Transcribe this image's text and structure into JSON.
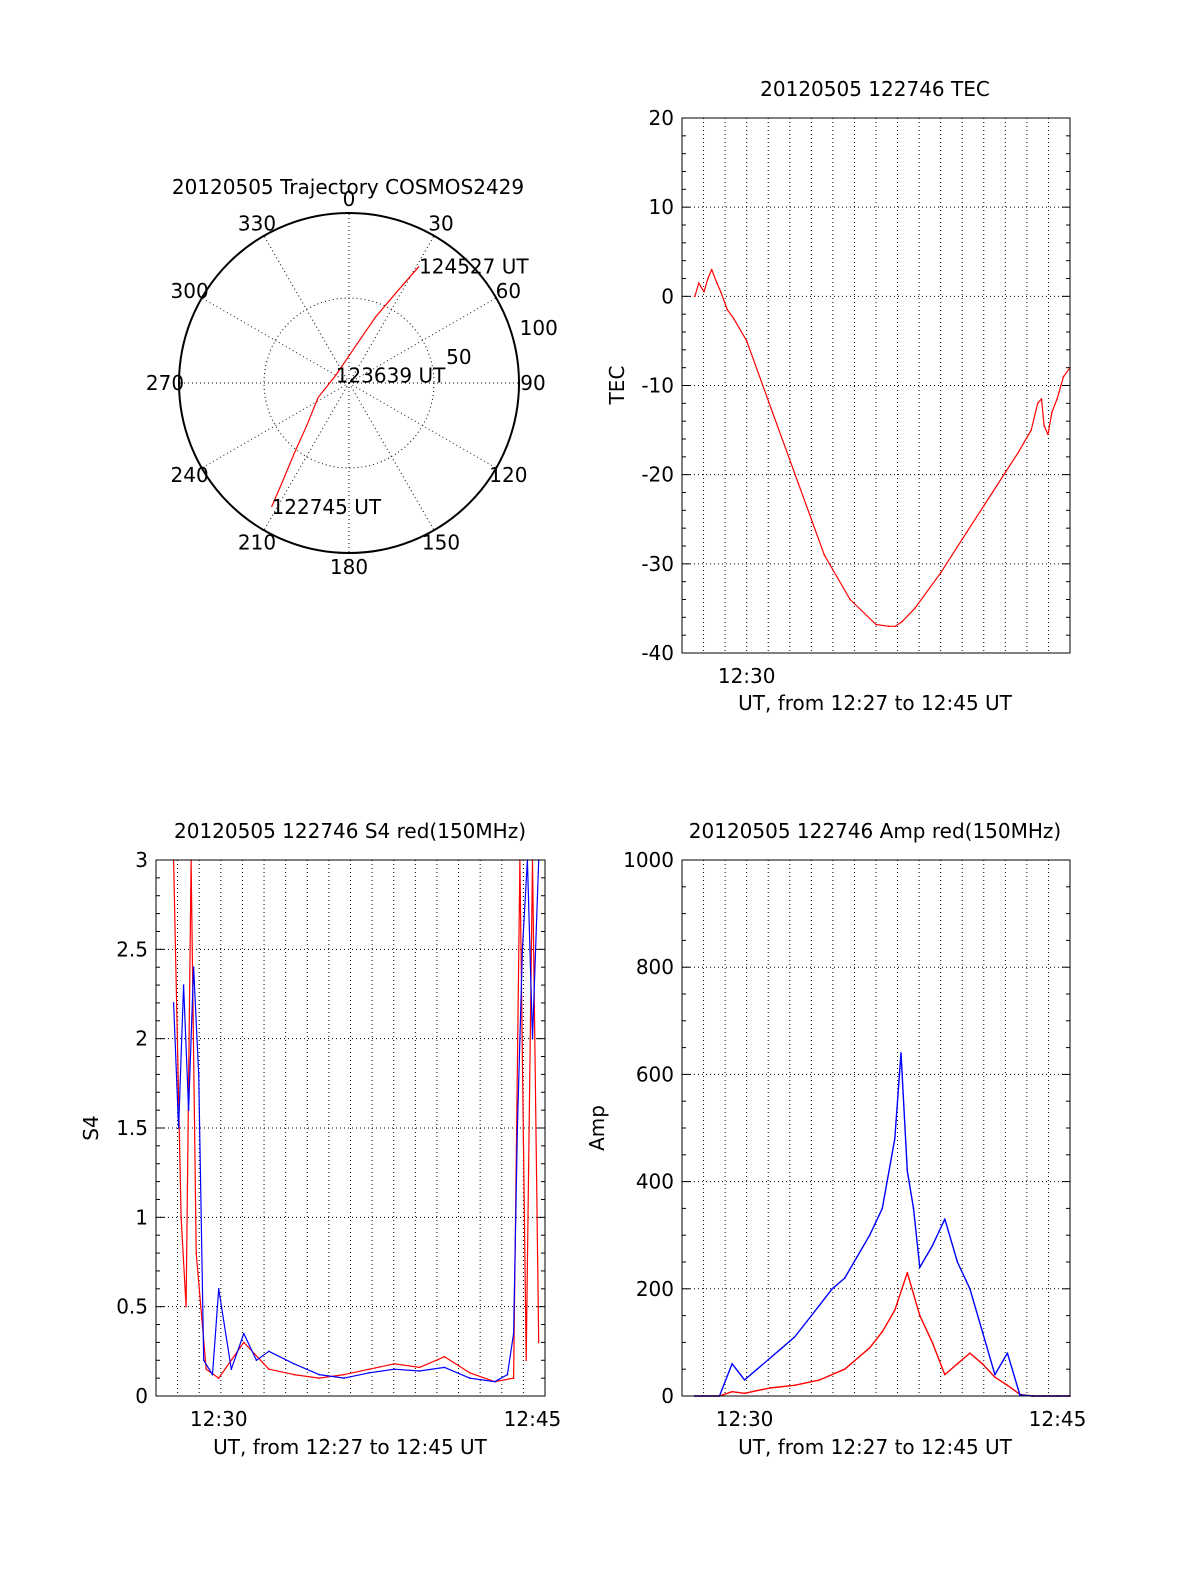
{
  "colors": {
    "red": "#ff0000",
    "blue": "#0000ff",
    "axis": "#000000"
  },
  "chart_data": [
    {
      "type": "polar",
      "id": "trajectory",
      "title": "20120505 Trajectory COSMOS2429",
      "azimuth_labels": [
        "0",
        "30",
        "60",
        "90",
        "120",
        "150",
        "180",
        "210",
        "240",
        "270",
        "300",
        "330"
      ],
      "azimuth_degrees": [
        0,
        30,
        60,
        90,
        120,
        150,
        180,
        210,
        240,
        270,
        300,
        330
      ],
      "radial_ring_labels": [
        {
          "value": 50,
          "label": "50"
        },
        {
          "value": 100,
          "label": "100"
        }
      ],
      "trajectory": {
        "color": "red",
        "points": [
          {
            "az": 212,
            "r": 86
          },
          {
            "az": 214,
            "r": 70
          },
          {
            "az": 218,
            "r": 52
          },
          {
            "az": 225,
            "r": 35
          },
          {
            "az": 245,
            "r": 20
          },
          {
            "az": 300,
            "r": 9
          },
          {
            "az": 10,
            "r": 22
          },
          {
            "az": 22,
            "r": 42
          },
          {
            "az": 28,
            "r": 62
          },
          {
            "az": 31,
            "r": 80
          }
        ]
      },
      "time_labels": [
        {
          "text": "124527 UT",
          "az": 31,
          "r": 80
        },
        {
          "text": "123639 UT",
          "az": 300,
          "r": 9
        },
        {
          "text": "122745 UT",
          "az": 212,
          "r": 86
        }
      ]
    },
    {
      "type": "line",
      "id": "tec",
      "title": "20120505 122746 TEC",
      "xlabel": "UT, from 12:27 to 12:45 UT",
      "ylabel": "TEC",
      "xlim": [
        12.45,
        12.75
      ],
      "ylim": [
        -40,
        20
      ],
      "yticks": [
        -40,
        -30,
        -20,
        -10,
        0,
        10,
        20
      ],
      "xticks": [
        {
          "value": 12.5,
          "label": "12:30"
        }
      ],
      "series": [
        {
          "color": "red",
          "x": [
            12.46,
            12.463,
            12.467,
            12.47,
            12.473,
            12.477,
            12.48,
            12.485,
            12.49,
            12.5,
            12.52,
            12.54,
            12.56,
            12.58,
            12.6,
            12.61,
            12.615,
            12.62,
            12.63,
            12.65,
            12.67,
            12.69,
            12.71,
            12.72,
            12.725,
            12.728,
            12.73,
            12.733,
            12.736,
            12.74,
            12.745,
            12.75
          ],
          "y": [
            0,
            1.5,
            0.5,
            2,
            3,
            1.5,
            0.5,
            -1.5,
            -2.5,
            -5,
            -13,
            -21,
            -29,
            -34,
            -36.8,
            -37,
            -37,
            -36.5,
            -35,
            -31,
            -26.5,
            -22,
            -17.5,
            -15,
            -12,
            -11.5,
            -14.5,
            -15.5,
            -13,
            -11.5,
            -9,
            -8
          ]
        }
      ]
    },
    {
      "type": "line",
      "id": "s4",
      "title": "20120505 122746 S4 red(150MHz)",
      "xlabel": "UT, from 12:27 to 12:45 UT",
      "ylabel": "S4",
      "xlim": [
        12.45,
        12.76
      ],
      "ylim": [
        0,
        3
      ],
      "yticks": [
        0,
        0.5,
        1,
        1.5,
        2,
        2.5,
        3
      ],
      "ytick_labels": [
        "0",
        "0.5",
        "1",
        "1.5",
        "2",
        "2.5",
        "3"
      ],
      "xticks": [
        {
          "value": 12.5,
          "label": "12:30"
        },
        {
          "value": 12.75,
          "label": "12:45"
        }
      ],
      "series": [
        {
          "color": "red",
          "x": [
            12.464,
            12.47,
            12.474,
            12.478,
            12.482,
            12.49,
            12.5,
            12.52,
            12.54,
            12.56,
            12.58,
            12.6,
            12.62,
            12.64,
            12.66,
            12.68,
            12.7,
            12.72,
            12.735,
            12.74,
            12.745,
            12.75,
            12.755
          ],
          "y": [
            3.0,
            1.0,
            0.5,
            3.0,
            0.8,
            0.15,
            0.1,
            0.3,
            0.15,
            0.12,
            0.1,
            0.12,
            0.15,
            0.18,
            0.16,
            0.22,
            0.13,
            0.08,
            0.1,
            3.0,
            0.2,
            3.0,
            0.3
          ]
        },
        {
          "color": "blue",
          "x": [
            12.464,
            12.468,
            12.472,
            12.476,
            12.48,
            12.484,
            12.488,
            12.495,
            12.5,
            12.51,
            12.52,
            12.53,
            12.54,
            12.56,
            12.58,
            12.6,
            12.62,
            12.64,
            12.66,
            12.68,
            12.7,
            12.72,
            12.73,
            12.735,
            12.738,
            12.742,
            12.746,
            12.75,
            12.755
          ],
          "y": [
            2.2,
            1.5,
            2.3,
            1.6,
            2.4,
            1.8,
            0.2,
            0.12,
            0.6,
            0.15,
            0.35,
            0.2,
            0.25,
            0.18,
            0.12,
            0.1,
            0.13,
            0.15,
            0.14,
            0.16,
            0.1,
            0.08,
            0.12,
            0.35,
            1.5,
            2.5,
            3.0,
            2.0,
            3.0
          ]
        }
      ]
    },
    {
      "type": "line",
      "id": "amp",
      "title": "20120505 122746 Amp red(150MHz)",
      "xlabel": "UT, from 12:27 to 12:45 UT",
      "ylabel": "Amp",
      "xlim": [
        12.45,
        12.76
      ],
      "ylim": [
        0,
        1000
      ],
      "yticks": [
        0,
        200,
        400,
        600,
        800,
        1000
      ],
      "xticks": [
        {
          "value": 12.5,
          "label": "12:30"
        },
        {
          "value": 12.75,
          "label": "12:45"
        }
      ],
      "series": [
        {
          "color": "red",
          "x": [
            12.46,
            12.48,
            12.49,
            12.5,
            12.52,
            12.54,
            12.56,
            12.58,
            12.6,
            12.61,
            12.62,
            12.63,
            12.64,
            12.65,
            12.66,
            12.67,
            12.68,
            12.69,
            12.7,
            12.71,
            12.72,
            12.73,
            12.74,
            12.75,
            12.76
          ],
          "y": [
            0,
            0,
            8,
            5,
            15,
            20,
            30,
            50,
            90,
            120,
            160,
            230,
            150,
            100,
            40,
            60,
            80,
            60,
            35,
            20,
            3,
            0,
            0,
            0,
            0
          ]
        },
        {
          "color": "blue",
          "x": [
            12.46,
            12.48,
            12.49,
            12.5,
            12.51,
            12.52,
            12.53,
            12.54,
            12.55,
            12.56,
            12.57,
            12.58,
            12.59,
            12.6,
            12.61,
            12.62,
            12.625,
            12.63,
            12.635,
            12.64,
            12.65,
            12.66,
            12.67,
            12.68,
            12.69,
            12.7,
            12.71,
            12.72,
            12.73,
            12.74,
            12.75,
            12.76
          ],
          "y": [
            0,
            0,
            60,
            30,
            50,
            70,
            90,
            110,
            140,
            170,
            200,
            220,
            260,
            300,
            350,
            480,
            640,
            420,
            350,
            240,
            280,
            330,
            250,
            200,
            120,
            40,
            80,
            2,
            0,
            0,
            0,
            0
          ]
        }
      ]
    }
  ]
}
